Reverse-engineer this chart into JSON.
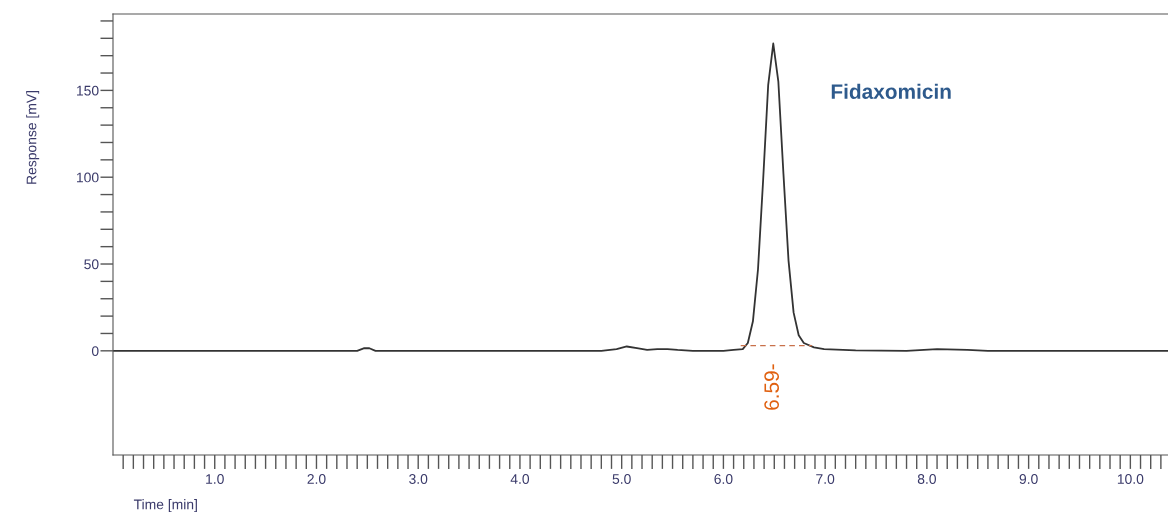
{
  "chart_data": {
    "type": "line",
    "xlabel": "Time [min]",
    "ylabel": "Response [mV]",
    "annotations": [
      "6.59-",
      "Fidaxomicin"
    ],
    "series": [
      {
        "color": "#333333",
        "x": [
          0,
          1.0,
          2.0,
          2.4,
          2.47,
          2.52,
          2.58,
          3.0,
          4.0,
          4.8,
          4.95,
          5.05,
          5.15,
          5.25,
          5.35,
          5.45,
          5.55,
          5.7,
          6.0,
          6.1,
          6.19,
          6.24,
          6.29,
          6.34,
          6.39,
          6.44,
          6.49,
          6.54,
          6.59,
          6.64,
          6.69,
          6.74,
          6.79,
          6.89,
          6.99,
          7.3,
          7.8,
          8.1,
          8.4,
          8.6,
          9.0,
          10.0,
          10.37
        ],
        "values": [
          0,
          0,
          0,
          0,
          1.5,
          1.5,
          0,
          0,
          0,
          0,
          1,
          2.5,
          1.5,
          0.5,
          1,
          1,
          0.5,
          0,
          0,
          0.5,
          1,
          4.5,
          17,
          47,
          98,
          153,
          177,
          155,
          102,
          52,
          22,
          9,
          4.5,
          2,
          1,
          0.3,
          0,
          1,
          0.5,
          0,
          0,
          0,
          0
        ]
      },
      {
        "color": "#c8704a",
        "line_style": "dashed",
        "x": [
          6.17,
          6.87
        ],
        "values": [
          3,
          3
        ]
      }
    ],
    "xlim": [
      0,
      10.37
    ],
    "ylim": [
      -60,
      194
    ],
    "xticks": [
      {
        "value": 0.1,
        "label": null
      },
      {
        "value": 0.2,
        "label": null
      },
      {
        "value": 0.3,
        "label": null
      },
      {
        "value": 0.4,
        "label": null
      },
      {
        "value": 0.5,
        "label": null
      },
      {
        "value": 0.6,
        "label": null
      },
      {
        "value": 0.7,
        "label": null
      },
      {
        "value": 0.8,
        "label": null
      },
      {
        "value": 0.9,
        "label": null
      },
      {
        "value": 1.0,
        "label": "1.0"
      },
      {
        "value": 1.1,
        "label": null
      },
      {
        "value": 1.2,
        "label": null
      },
      {
        "value": 1.3,
        "label": null
      },
      {
        "value": 1.4,
        "label": null
      },
      {
        "value": 1.5,
        "label": null
      },
      {
        "value": 1.6,
        "label": null
      },
      {
        "value": 1.7,
        "label": null
      },
      {
        "value": 1.8,
        "label": null
      },
      {
        "value": 1.9,
        "label": null
      },
      {
        "value": 2.0,
        "label": "2.0"
      },
      {
        "value": 2.1,
        "label": null
      },
      {
        "value": 2.2,
        "label": null
      },
      {
        "value": 2.3,
        "label": null
      },
      {
        "value": 2.4,
        "label": null
      },
      {
        "value": 2.5,
        "label": null
      },
      {
        "value": 2.6,
        "label": null
      },
      {
        "value": 2.7,
        "label": null
      },
      {
        "value": 2.8,
        "label": null
      },
      {
        "value": 2.9,
        "label": null
      },
      {
        "value": 3.0,
        "label": "3.0"
      },
      {
        "value": 3.1,
        "label": null
      },
      {
        "value": 3.2,
        "label": null
      },
      {
        "value": 3.3,
        "label": null
      },
      {
        "value": 3.4,
        "label": null
      },
      {
        "value": 3.5,
        "label": null
      },
      {
        "value": 3.6,
        "label": null
      },
      {
        "value": 3.7,
        "label": null
      },
      {
        "value": 3.8,
        "label": null
      },
      {
        "value": 3.9,
        "label": null
      },
      {
        "value": 4.0,
        "label": "4.0"
      },
      {
        "value": 4.1,
        "label": null
      },
      {
        "value": 4.2,
        "label": null
      },
      {
        "value": 4.3,
        "label": null
      },
      {
        "value": 4.4,
        "label": null
      },
      {
        "value": 4.5,
        "label": null
      },
      {
        "value": 4.6,
        "label": null
      },
      {
        "value": 4.7,
        "label": null
      },
      {
        "value": 4.8,
        "label": null
      },
      {
        "value": 4.9,
        "label": null
      },
      {
        "value": 5.0,
        "label": "5.0"
      },
      {
        "value": 5.1,
        "label": null
      },
      {
        "value": 5.2,
        "label": null
      },
      {
        "value": 5.3,
        "label": null
      },
      {
        "value": 5.4,
        "label": null
      },
      {
        "value": 5.5,
        "label": null
      },
      {
        "value": 5.6,
        "label": null
      },
      {
        "value": 5.7,
        "label": null
      },
      {
        "value": 5.8,
        "label": null
      },
      {
        "value": 5.9,
        "label": null
      },
      {
        "value": 6.0,
        "label": "6.0"
      },
      {
        "value": 6.1,
        "label": null
      },
      {
        "value": 6.2,
        "label": null
      },
      {
        "value": 6.3,
        "label": null
      },
      {
        "value": 6.4,
        "label": null
      },
      {
        "value": 6.5,
        "label": null
      },
      {
        "value": 6.6,
        "label": null
      },
      {
        "value": 6.7,
        "label": null
      },
      {
        "value": 6.8,
        "label": null
      },
      {
        "value": 6.9,
        "label": null
      },
      {
        "value": 7.0,
        "label": "7.0"
      },
      {
        "value": 7.1,
        "label": null
      },
      {
        "value": 7.2,
        "label": null
      },
      {
        "value": 7.3,
        "label": null
      },
      {
        "value": 7.4,
        "label": null
      },
      {
        "value": 7.5,
        "label": null
      },
      {
        "value": 7.6,
        "label": null
      },
      {
        "value": 7.7,
        "label": null
      },
      {
        "value": 7.8,
        "label": null
      },
      {
        "value": 7.9,
        "label": null
      },
      {
        "value": 8.0,
        "label": "8.0"
      },
      {
        "value": 8.1,
        "label": null
      },
      {
        "value": 8.2,
        "label": null
      },
      {
        "value": 8.3,
        "label": null
      },
      {
        "value": 8.4,
        "label": null
      },
      {
        "value": 8.5,
        "label": null
      },
      {
        "value": 8.6,
        "label": null
      },
      {
        "value": 8.7,
        "label": null
      },
      {
        "value": 8.8,
        "label": null
      },
      {
        "value": 8.9,
        "label": null
      },
      {
        "value": 9.0,
        "label": "9.0"
      },
      {
        "value": 9.1,
        "label": null
      },
      {
        "value": 9.2,
        "label": null
      },
      {
        "value": 9.3,
        "label": null
      },
      {
        "value": 9.4,
        "label": null
      },
      {
        "value": 9.5,
        "label": null
      },
      {
        "value": 9.6,
        "label": null
      },
      {
        "value": 9.7,
        "label": null
      },
      {
        "value": 9.8,
        "label": null
      },
      {
        "value": 9.9,
        "label": null
      },
      {
        "value": 10.0,
        "label": "10.0"
      },
      {
        "value": 10.1,
        "label": null
      },
      {
        "value": 10.2,
        "label": null
      },
      {
        "value": 10.3,
        "label": null
      }
    ],
    "yticks": [
      0,
      {
        "value": 10,
        "label": null
      },
      {
        "value": 20,
        "label": null
      },
      {
        "value": 30,
        "label": null
      },
      {
        "value": 40,
        "label": null
      },
      50,
      {
        "value": 60,
        "label": null
      },
      {
        "value": 70,
        "label": null
      },
      {
        "value": 80,
        "label": null
      },
      {
        "value": 90,
        "label": null
      },
      100,
      {
        "value": 110,
        "label": null
      },
      {
        "value": 120,
        "label": null
      },
      {
        "value": 130,
        "label": null
      },
      {
        "value": 140,
        "label": null
      },
      150,
      {
        "value": 160,
        "label": null
      },
      {
        "value": 170,
        "label": null
      },
      {
        "value": 180,
        "label": null
      },
      {
        "value": 190,
        "label": null
      }
    ],
    "grid": false,
    "legend": false
  }
}
